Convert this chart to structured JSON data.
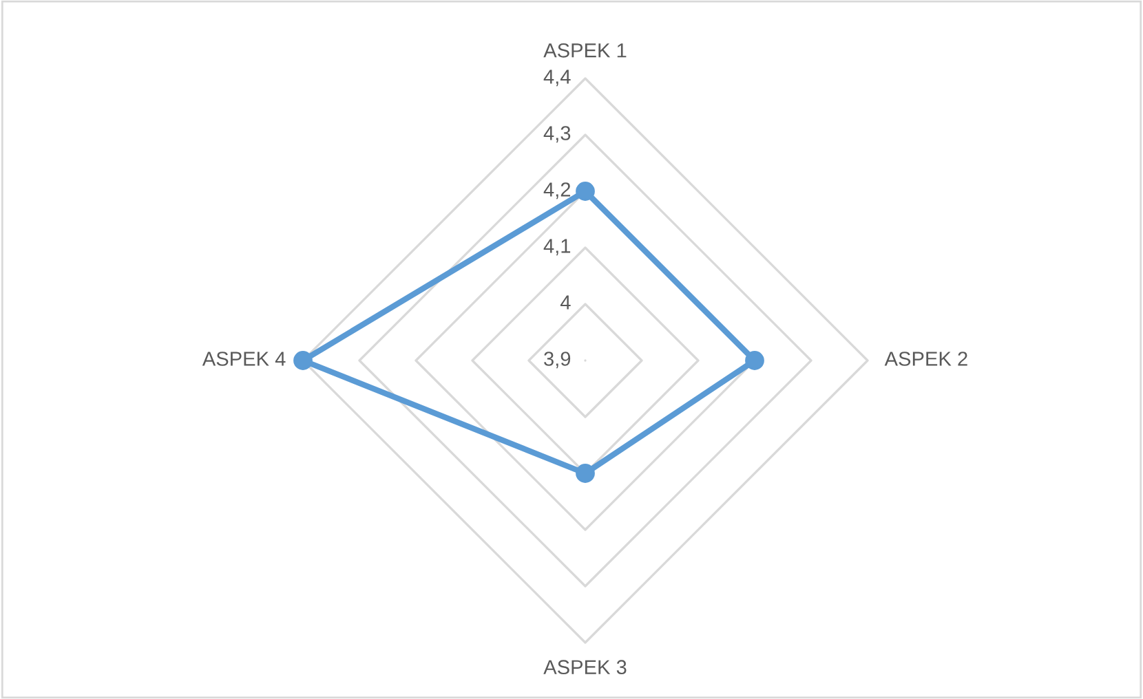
{
  "chart_data": {
    "type": "radar",
    "categories": [
      "ASPEK 1",
      "ASPEK 2",
      "ASPEK 3",
      "ASPEK 4"
    ],
    "series": [
      {
        "color": "#5b9bd5",
        "values": [
          4.2,
          4.2,
          4.1,
          4.4
        ]
      }
    ],
    "ylim": [
      3.9,
      4.4
    ],
    "yticks": [
      {
        "value": 3.9,
        "label": "3,9"
      },
      4,
      {
        "value": 4.1,
        "label": "4,1"
      },
      {
        "value": 4.2,
        "label": "4,2"
      },
      {
        "value": 4.3,
        "label": "4,3"
      },
      {
        "value": 4.4,
        "label": "4,4"
      }
    ],
    "grid": true,
    "marker": "circle",
    "line_style": "solid"
  }
}
